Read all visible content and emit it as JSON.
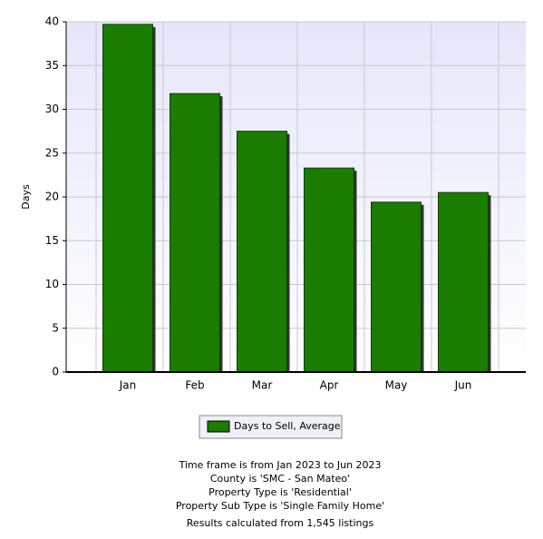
{
  "chart_data": {
    "type": "bar",
    "y_label": "Days",
    "categories": [
      "Jan",
      "Feb",
      "Mar",
      "Apr",
      "May",
      "Jun"
    ],
    "series": [
      {
        "name": "Days to Sell, Average",
        "color": "#1a7d00",
        "values": [
          39.7,
          31.8,
          27.5,
          23.3,
          19.4,
          20.5
        ]
      }
    ],
    "ylim": [
      0,
      40
    ],
    "yticks": [
      0,
      5,
      10,
      15,
      20,
      25,
      30,
      35,
      40
    ],
    "grid": true,
    "legend": "bottom",
    "notes": [
      "Time frame is from Jan 2023 to Jun 2023",
      "County is 'SMC - San Mateo'",
      "Property Type is 'Residential'",
      "Property Sub Type is 'Single Family Home'",
      "Results calculated from 1,545 listings"
    ]
  }
}
